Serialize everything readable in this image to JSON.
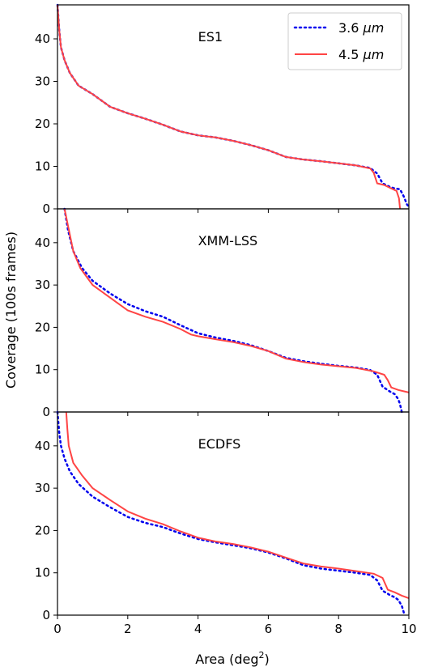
{
  "chart_data": {
    "type": "line",
    "xlabel": "Area (deg",
    "xlabel_sup": "2",
    "xlabel_close": ")",
    "ylabel": "Coverage (100s frames)",
    "xlim": [
      0,
      10
    ],
    "ylim": [
      0,
      48
    ],
    "xticks": [
      0,
      2,
      4,
      6,
      8,
      10
    ],
    "yticks": [
      0,
      10,
      20,
      30,
      40
    ],
    "grid": false,
    "legend": {
      "placement": "top-right of first panel",
      "entries": [
        {
          "label": "3.6 ",
          "mu": "μ",
          "unit": "m",
          "color": "#0000ee",
          "style": "dotted"
        },
        {
          "label": "4.5 ",
          "mu": "μ",
          "unit": "m",
          "color": "#ff4444",
          "style": "solid"
        }
      ]
    },
    "panels": [
      {
        "label": "ES1",
        "series": [
          {
            "name": "3.6 μm",
            "color": "#0000ee",
            "style": "dotted",
            "points": [
              [
                0.0,
                48
              ],
              [
                0.05,
                42
              ],
              [
                0.1,
                38
              ],
              [
                0.2,
                35
              ],
              [
                0.35,
                32
              ],
              [
                0.6,
                29
              ],
              [
                1.0,
                27
              ],
              [
                1.5,
                24
              ],
              [
                2.0,
                22.5
              ],
              [
                2.5,
                21.2
              ],
              [
                3.0,
                19.8
              ],
              [
                3.5,
                18.2
              ],
              [
                4.0,
                17.3
              ],
              [
                4.5,
                16.8
              ],
              [
                5.0,
                16.0
              ],
              [
                5.5,
                15.0
              ],
              [
                6.0,
                13.8
              ],
              [
                6.5,
                12.2
              ],
              [
                7.0,
                11.6
              ],
              [
                7.5,
                11.2
              ],
              [
                8.0,
                10.7
              ],
              [
                8.5,
                10.2
              ],
              [
                8.9,
                9.6
              ],
              [
                9.1,
                8.3
              ],
              [
                9.25,
                6.0
              ],
              [
                9.45,
                5.2
              ],
              [
                9.6,
                4.8
              ],
              [
                9.75,
                4.6
              ],
              [
                9.85,
                3.0
              ],
              [
                9.95,
                1.0
              ],
              [
                10.0,
                0.5
              ]
            ]
          },
          {
            "name": "4.5 μm",
            "color": "#ff4444",
            "style": "solid",
            "points": [
              [
                0.0,
                48
              ],
              [
                0.05,
                42
              ],
              [
                0.1,
                38
              ],
              [
                0.2,
                35
              ],
              [
                0.35,
                32
              ],
              [
                0.6,
                29
              ],
              [
                1.0,
                27
              ],
              [
                1.5,
                24
              ],
              [
                2.0,
                22.5
              ],
              [
                2.5,
                21.2
              ],
              [
                3.0,
                19.8
              ],
              [
                3.5,
                18.2
              ],
              [
                4.0,
                17.3
              ],
              [
                4.5,
                16.8
              ],
              [
                5.0,
                16.0
              ],
              [
                5.5,
                15.0
              ],
              [
                6.0,
                13.8
              ],
              [
                6.5,
                12.2
              ],
              [
                7.0,
                11.6
              ],
              [
                7.5,
                11.2
              ],
              [
                8.0,
                10.7
              ],
              [
                8.5,
                10.2
              ],
              [
                8.9,
                9.5
              ],
              [
                9.0,
                8.5
              ],
              [
                9.1,
                6.0
              ],
              [
                9.3,
                5.6
              ],
              [
                9.5,
                4.8
              ],
              [
                9.65,
                4.2
              ],
              [
                9.72,
                2.5
              ],
              [
                9.75,
                0.0
              ]
            ]
          }
        ]
      },
      {
        "label": "XMM-LSS",
        "series": [
          {
            "name": "3.6 μm",
            "color": "#0000ee",
            "style": "dotted",
            "points": [
              [
                0.2,
                48
              ],
              [
                0.3,
                43
              ],
              [
                0.45,
                38
              ],
              [
                0.7,
                34
              ],
              [
                1.0,
                31
              ],
              [
                1.5,
                28
              ],
              [
                2.0,
                25.5
              ],
              [
                2.5,
                23.8
              ],
              [
                3.0,
                22.5
              ],
              [
                3.5,
                20.5
              ],
              [
                4.0,
                18.6
              ],
              [
                4.5,
                17.6
              ],
              [
                5.0,
                16.8
              ],
              [
                5.5,
                15.8
              ],
              [
                6.0,
                14.4
              ],
              [
                6.5,
                12.8
              ],
              [
                7.0,
                12.0
              ],
              [
                7.5,
                11.4
              ],
              [
                8.0,
                10.9
              ],
              [
                8.5,
                10.5
              ],
              [
                8.9,
                9.9
              ],
              [
                9.1,
                8.8
              ],
              [
                9.25,
                6.0
              ],
              [
                9.45,
                4.9
              ],
              [
                9.6,
                4.2
              ],
              [
                9.7,
                3.0
              ],
              [
                9.75,
                1.8
              ],
              [
                9.8,
                0.0
              ]
            ]
          },
          {
            "name": "4.5 μm",
            "color": "#ff4444",
            "style": "solid",
            "points": [
              [
                0.2,
                48
              ],
              [
                0.3,
                44
              ],
              [
                0.45,
                38
              ],
              [
                0.65,
                34
              ],
              [
                1.0,
                30
              ],
              [
                1.5,
                27
              ],
              [
                2.0,
                24
              ],
              [
                2.5,
                22.5
              ],
              [
                3.0,
                21.3
              ],
              [
                3.5,
                19.6
              ],
              [
                3.8,
                18.3
              ],
              [
                4.0,
                17.9
              ],
              [
                4.5,
                17.2
              ],
              [
                5.0,
                16.5
              ],
              [
                5.5,
                15.6
              ],
              [
                6.0,
                14.4
              ],
              [
                6.5,
                12.6
              ],
              [
                7.0,
                11.8
              ],
              [
                7.5,
                11.2
              ],
              [
                8.0,
                10.8
              ],
              [
                8.5,
                10.4
              ],
              [
                9.0,
                9.6
              ],
              [
                9.3,
                8.8
              ],
              [
                9.4,
                7.5
              ],
              [
                9.5,
                5.8
              ],
              [
                9.7,
                5.2
              ],
              [
                9.9,
                4.8
              ],
              [
                10.0,
                4.6
              ]
            ]
          }
        ]
      },
      {
        "label": "ECDFS",
        "series": [
          {
            "name": "3.6 μm",
            "color": "#0000ee",
            "style": "dotted",
            "points": [
              [
                0.0,
                48
              ],
              [
                0.05,
                43
              ],
              [
                0.1,
                40
              ],
              [
                0.2,
                37
              ],
              [
                0.35,
                34
              ],
              [
                0.6,
                31
              ],
              [
                1.0,
                28
              ],
              [
                1.5,
                25.5
              ],
              [
                2.0,
                23.2
              ],
              [
                2.5,
                21.8
              ],
              [
                3.0,
                20.8
              ],
              [
                3.5,
                19.3
              ],
              [
                4.0,
                18.0
              ],
              [
                4.5,
                17.2
              ],
              [
                5.0,
                16.5
              ],
              [
                5.5,
                15.8
              ],
              [
                6.0,
                14.8
              ],
              [
                6.5,
                13.4
              ],
              [
                7.0,
                11.8
              ],
              [
                7.5,
                11.0
              ],
              [
                8.0,
                10.5
              ],
              [
                8.5,
                10.0
              ],
              [
                8.9,
                9.5
              ],
              [
                9.1,
                8.2
              ],
              [
                9.25,
                5.8
              ],
              [
                9.45,
                4.8
              ],
              [
                9.6,
                4.2
              ],
              [
                9.7,
                3.6
              ],
              [
                9.8,
                2.2
              ],
              [
                9.85,
                0.8
              ],
              [
                9.87,
                0.0
              ]
            ]
          },
          {
            "name": "4.5 μm",
            "color": "#ff4444",
            "style": "solid",
            "points": [
              [
                0.25,
                48
              ],
              [
                0.28,
                44
              ],
              [
                0.32,
                40
              ],
              [
                0.45,
                36
              ],
              [
                0.7,
                33
              ],
              [
                1.0,
                30
              ],
              [
                1.5,
                27.2
              ],
              [
                2.0,
                24.5
              ],
              [
                2.5,
                22.8
              ],
              [
                3.0,
                21.5
              ],
              [
                3.5,
                19.8
              ],
              [
                4.0,
                18.3
              ],
              [
                4.5,
                17.4
              ],
              [
                5.0,
                16.8
              ],
              [
                5.5,
                16.0
              ],
              [
                6.0,
                15.0
              ],
              [
                6.5,
                13.6
              ],
              [
                7.0,
                12.2
              ],
              [
                7.5,
                11.5
              ],
              [
                8.0,
                11.0
              ],
              [
                8.5,
                10.4
              ],
              [
                9.0,
                9.8
              ],
              [
                9.25,
                8.8
              ],
              [
                9.4,
                6.0
              ],
              [
                9.6,
                5.4
              ],
              [
                9.8,
                4.6
              ],
              [
                10.0,
                4.0
              ]
            ]
          }
        ]
      }
    ]
  }
}
